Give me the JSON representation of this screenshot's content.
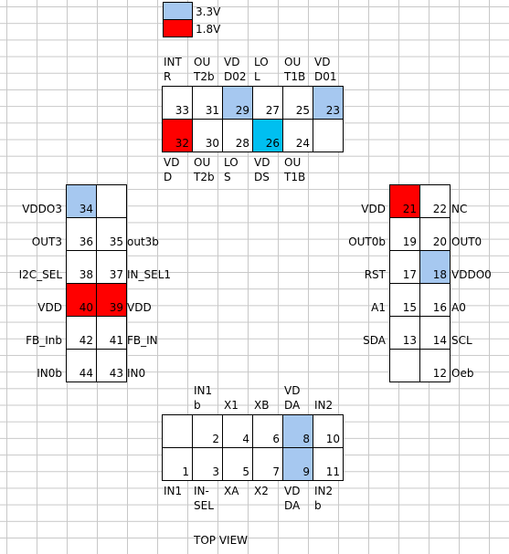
{
  "legend": [
    {
      "label": "3.3V",
      "color": "#a6c8f0"
    },
    {
      "label": "1.8V",
      "color": "#ff0000"
    }
  ],
  "colors": {
    "v33": "#a6c8f0",
    "v18": "#ff0000",
    "cyan": "#00bff0"
  },
  "top_labels_above": [
    [
      "INT",
      "R"
    ],
    [
      "OU",
      "T2b"
    ],
    [
      "VD",
      "D02"
    ],
    [
      "LO",
      "L"
    ],
    [
      "OU",
      "T1B"
    ],
    [
      "VD",
      "D01"
    ]
  ],
  "top_labels_below": [
    [
      "VD",
      "D"
    ],
    [
      "OU",
      "T2b"
    ],
    [
      "LO",
      "S"
    ],
    [
      "VD",
      "DS"
    ],
    [
      "OU",
      "T1B"
    ]
  ],
  "top_row1": [
    {
      "num": "33",
      "fill": "none"
    },
    {
      "num": "31",
      "fill": "none"
    },
    {
      "num": "29",
      "fill": "v33"
    },
    {
      "num": "27",
      "fill": "none"
    },
    {
      "num": "25",
      "fill": "none"
    },
    {
      "num": "23",
      "fill": "v33"
    }
  ],
  "top_row2": [
    {
      "num": "32",
      "fill": "v18"
    },
    {
      "num": "30",
      "fill": "none"
    },
    {
      "num": "28",
      "fill": "none"
    },
    {
      "num": "26",
      "fill": "cyan"
    },
    {
      "num": "24",
      "fill": "none"
    },
    {
      "num": "",
      "fill": "none"
    }
  ],
  "left_rows": [
    {
      "label": "VDDO3",
      "a": {
        "num": "34",
        "fill": "v33"
      },
      "b": {
        "num": "",
        "fill": "none"
      },
      "right": ""
    },
    {
      "label": "OUT3",
      "a": {
        "num": "36",
        "fill": "none"
      },
      "b": {
        "num": "35",
        "fill": "none"
      },
      "right": "out3b"
    },
    {
      "label": "I2C_SEL",
      "a": {
        "num": "38",
        "fill": "none"
      },
      "b": {
        "num": "37",
        "fill": "none"
      },
      "right": "IN_SEL1"
    },
    {
      "label": "VDD",
      "a": {
        "num": "40",
        "fill": "v18"
      },
      "b": {
        "num": "39",
        "fill": "v18"
      },
      "right": "VDD"
    },
    {
      "label": "FB_Inb",
      "a": {
        "num": "42",
        "fill": "none"
      },
      "b": {
        "num": "41",
        "fill": "none"
      },
      "right": "FB_IN"
    },
    {
      "label": "IN0b",
      "a": {
        "num": "44",
        "fill": "none"
      },
      "b": {
        "num": "43",
        "fill": "none"
      },
      "right": "IN0"
    }
  ],
  "right_rows": [
    {
      "label": "VDD",
      "a": {
        "num": "21",
        "fill": "v18"
      },
      "b": {
        "num": "22",
        "fill": "none"
      },
      "right": "NC"
    },
    {
      "label": "OUT0b",
      "a": {
        "num": "19",
        "fill": "none"
      },
      "b": {
        "num": "20",
        "fill": "none"
      },
      "right": "OUT0"
    },
    {
      "label": "RST",
      "a": {
        "num": "17",
        "fill": "none"
      },
      "b": {
        "num": "18",
        "fill": "v33"
      },
      "right": "VDDO0"
    },
    {
      "label": "A1",
      "a": {
        "num": "15",
        "fill": "none"
      },
      "b": {
        "num": "16",
        "fill": "none"
      },
      "right": "A0"
    },
    {
      "label": "SDA",
      "a": {
        "num": "13",
        "fill": "none"
      },
      "b": {
        "num": "14",
        "fill": "none"
      },
      "right": "SCL"
    },
    {
      "label": "",
      "a": {
        "num": "",
        "fill": "none"
      },
      "b": {
        "num": "12",
        "fill": "none"
      },
      "right": "Oeb"
    }
  ],
  "bottom_labels_above": [
    [
      "",
      ""
    ],
    [
      "IN1",
      "b"
    ],
    [
      "",
      "X1"
    ],
    [
      "",
      "XB"
    ],
    [
      "VD",
      "DA"
    ],
    [
      "",
      "IN2"
    ]
  ],
  "bottom_row1": [
    {
      "num": "",
      "fill": "none"
    },
    {
      "num": "2",
      "fill": "none"
    },
    {
      "num": "4",
      "fill": "none"
    },
    {
      "num": "6",
      "fill": "none"
    },
    {
      "num": "8",
      "fill": "v33"
    },
    {
      "num": "10",
      "fill": "none"
    }
  ],
  "bottom_row2": [
    {
      "num": "1",
      "fill": "none"
    },
    {
      "num": "3",
      "fill": "none"
    },
    {
      "num": "5",
      "fill": "none"
    },
    {
      "num": "7",
      "fill": "none"
    },
    {
      "num": "9",
      "fill": "v33"
    },
    {
      "num": "11",
      "fill": "none"
    }
  ],
  "bottom_labels_below": [
    [
      "IN1",
      ""
    ],
    [
      "IN-",
      "SEL"
    ],
    [
      "XA",
      ""
    ],
    [
      "X2",
      ""
    ],
    [
      "VD",
      "DA"
    ],
    [
      "IN2",
      "b"
    ]
  ],
  "caption": "TOP VIEW"
}
